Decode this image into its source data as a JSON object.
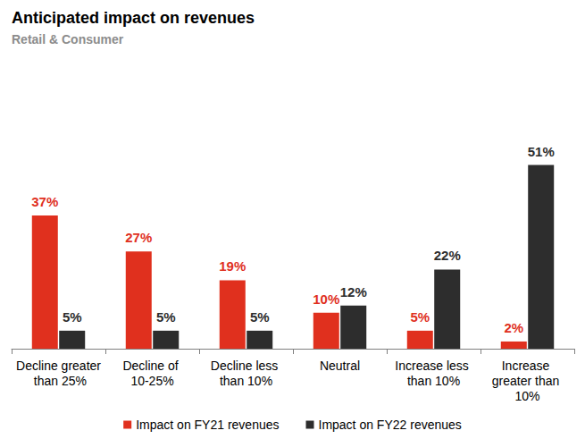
{
  "chart_data": {
    "type": "bar",
    "title": "Anticipated impact on revenues",
    "subtitle": "Retail & Consumer",
    "categories": [
      "Decline greater than 25%",
      "Decline of 10-25%",
      "Decline less than 10%",
      "Neutral",
      "Increase less than 10%",
      "Increase greater than 10%"
    ],
    "series": [
      {
        "name": "Impact on FY21 revenues",
        "color": "#e0301e",
        "values": [
          37,
          27,
          19,
          10,
          5,
          2
        ],
        "value_labels": [
          "37%",
          "27%",
          "19%",
          "10%",
          "5%",
          "2%"
        ]
      },
      {
        "name": "Impact on FY22 revenues",
        "color": "#2d2d2d",
        "values": [
          5,
          5,
          5,
          12,
          22,
          51
        ],
        "value_labels": [
          "5%",
          "5%",
          "5%",
          "12%",
          "22%",
          "51%"
        ]
      }
    ],
    "ylim": [
      0,
      72
    ],
    "grid": false,
    "legend": "bottom",
    "data_labels": true,
    "tick_labels": "x"
  }
}
